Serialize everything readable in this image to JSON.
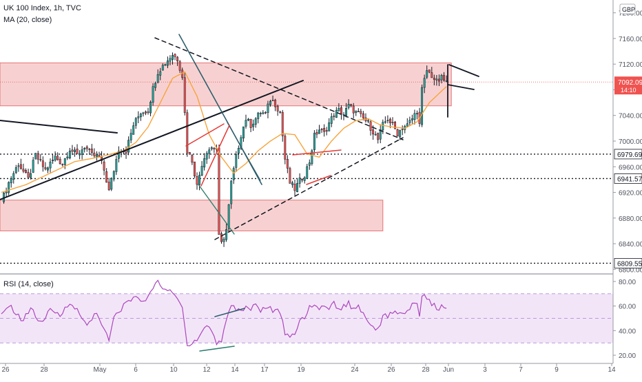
{
  "header": {
    "symbol_title": "UK 100 Index, 1h, TVC",
    "ma_legend": "MA (20, close)",
    "rsi_legend": "RSI (14, close)",
    "currency": "GBP"
  },
  "price_axis": {
    "ticks": [
      "7200.00",
      "7160.00",
      "7120.00",
      "7080.00",
      "7040.00",
      "7000.00",
      "6960.00",
      "6920.00",
      "6880.00",
      "6840.00",
      "6800.00"
    ],
    "price_labels": [
      {
        "value": 7092.09,
        "text": "7092.09",
        "subtext": "14:10",
        "kind": "current"
      },
      {
        "value": 6979.69,
        "text": "6979.69",
        "kind": "level"
      },
      {
        "value": 6941.57,
        "text": "6941.57",
        "kind": "level"
      },
      {
        "value": 6809.55,
        "text": "6809.55",
        "kind": "level"
      }
    ]
  },
  "rsi_axis": {
    "ticks": [
      "80.00",
      "60.00",
      "40.00",
      "20.00"
    ]
  },
  "time_axis": {
    "labels": [
      "26",
      "28",
      "May",
      "6",
      "10",
      "12",
      "14",
      "17",
      "19",
      "24",
      "26",
      "28",
      "Jun",
      "3",
      "7",
      "9",
      "14"
    ]
  },
  "chart_data": {
    "type": "candlestick",
    "symbol": "UK 100 Index",
    "interval": "1h",
    "source": "TVC",
    "price_range": [
      6795,
      7220
    ],
    "rsi_range": [
      15,
      85
    ],
    "rsi_band": [
      30,
      70
    ],
    "time_labels": [
      "26",
      "28",
      "May",
      "6",
      "10",
      "12",
      "14",
      "17",
      "19",
      "24",
      "26",
      "28",
      "Jun",
      "3",
      "7",
      "9",
      "14"
    ],
    "close_anchors": [
      [
        0,
        6905
      ],
      [
        3,
        6935
      ],
      [
        7,
        6965
      ],
      [
        11,
        6940
      ],
      [
        14,
        6978
      ],
      [
        18,
        6955
      ],
      [
        22,
        6975
      ],
      [
        25,
        6965
      ],
      [
        28,
        6988
      ],
      [
        31,
        6978
      ],
      [
        34,
        6992
      ],
      [
        37,
        6978
      ],
      [
        40,
        6975
      ],
      [
        42,
        6955
      ],
      [
        44,
        6922
      ],
      [
        46,
        6955
      ],
      [
        48,
        6988
      ],
      [
        51,
        6985
      ],
      [
        54,
        7025
      ],
      [
        57,
        7045
      ],
      [
        60,
        7048
      ],
      [
        62,
        7082
      ],
      [
        64,
        7108
      ],
      [
        67,
        7122
      ],
      [
        70,
        7135
      ],
      [
        72,
        7128
      ],
      [
        74,
        7102
      ],
      [
        76,
        6985
      ],
      [
        78,
        6970
      ],
      [
        80,
        6930
      ],
      [
        82,
        6965
      ],
      [
        84,
        6985
      ],
      [
        86,
        6990
      ],
      [
        88,
        6988
      ],
      [
        89,
        6850
      ],
      [
        90,
        6840
      ],
      [
        92,
        6862
      ],
      [
        94,
        6935
      ],
      [
        96,
        6975
      ],
      [
        98,
        7010
      ],
      [
        100,
        7035
      ],
      [
        102,
        7025
      ],
      [
        104,
        7035
      ],
      [
        106,
        7045
      ],
      [
        108,
        7042
      ],
      [
        110,
        7065
      ],
      [
        112,
        7058
      ],
      [
        114,
        7045
      ],
      [
        116,
        6972
      ],
      [
        118,
        6935
      ],
      [
        120,
        6925
      ],
      [
        122,
        6938
      ],
      [
        124,
        6948
      ],
      [
        126,
        6968
      ],
      [
        128,
        7008
      ],
      [
        130,
        7018
      ],
      [
        132,
        7012
      ],
      [
        134,
        7028
      ],
      [
        136,
        7042
      ],
      [
        138,
        7048
      ],
      [
        140,
        7042
      ],
      [
        142,
        7055
      ],
      [
        144,
        7048
      ],
      [
        146,
        7042
      ],
      [
        148,
        7035
      ],
      [
        150,
        7028
      ],
      [
        152,
        7015
      ],
      [
        154,
        7002
      ],
      [
        156,
        7025
      ],
      [
        158,
        7035
      ],
      [
        160,
        7025
      ],
      [
        162,
        7012
      ],
      [
        164,
        7022
      ],
      [
        166,
        7025
      ],
      [
        168,
        7035
      ],
      [
        170,
        7048
      ],
      [
        171,
        7025
      ],
      [
        172,
        7080
      ],
      [
        174,
        7110
      ],
      [
        176,
        7102
      ],
      [
        178,
        7092
      ],
      [
        180,
        7098
      ],
      [
        182,
        7092.09
      ]
    ],
    "moving_average": {
      "name": "MA (20, close)",
      "points": [
        [
          0,
          6920
        ],
        [
          10,
          6932
        ],
        [
          20,
          6950
        ],
        [
          30,
          6968
        ],
        [
          40,
          6975
        ],
        [
          50,
          6985
        ],
        [
          55,
          6998
        ],
        [
          60,
          7022
        ],
        [
          65,
          7060
        ],
        [
          70,
          7098
        ],
        [
          75,
          7108
        ],
        [
          80,
          7070
        ],
        [
          85,
          7010
        ],
        [
          90,
          6975
        ],
        [
          95,
          6950
        ],
        [
          100,
          6965
        ],
        [
          105,
          6985
        ],
        [
          110,
          7000
        ],
        [
          115,
          7012
        ],
        [
          120,
          7010
        ],
        [
          125,
          6980
        ],
        [
          130,
          6975
        ],
        [
          135,
          7000
        ],
        [
          140,
          7020
        ],
        [
          145,
          7032
        ],
        [
          150,
          7035
        ],
        [
          155,
          7025
        ],
        [
          160,
          7022
        ],
        [
          165,
          7020
        ],
        [
          170,
          7030
        ],
        [
          175,
          7060
        ],
        [
          182,
          7085
        ]
      ]
    },
    "rsi": {
      "name": "RSI (14, close)",
      "anchors": [
        [
          0,
          52
        ],
        [
          4,
          60
        ],
        [
          8,
          48
        ],
        [
          12,
          58
        ],
        [
          16,
          46
        ],
        [
          20,
          56
        ],
        [
          24,
          52
        ],
        [
          28,
          64
        ],
        [
          31,
          56
        ],
        [
          35,
          44
        ],
        [
          39,
          56
        ],
        [
          42,
          40
        ],
        [
          44,
          32
        ],
        [
          46,
          50
        ],
        [
          49,
          58
        ],
        [
          52,
          64
        ],
        [
          55,
          68
        ],
        [
          58,
          62
        ],
        [
          61,
          72
        ],
        [
          63,
          80
        ],
        [
          66,
          76
        ],
        [
          68,
          72
        ],
        [
          70,
          70
        ],
        [
          72,
          66
        ],
        [
          74,
          58
        ],
        [
          76,
          28
        ],
        [
          78,
          31
        ],
        [
          80,
          33
        ],
        [
          82,
          40
        ],
        [
          84,
          44
        ],
        [
          86,
          40
        ],
        [
          87,
          36
        ],
        [
          88,
          28
        ],
        [
          89,
          32
        ],
        [
          90,
          31
        ],
        [
          92,
          50
        ],
        [
          94,
          60
        ],
        [
          96,
          58
        ],
        [
          98,
          56
        ],
        [
          100,
          60
        ],
        [
          102,
          58
        ],
        [
          104,
          62
        ],
        [
          106,
          56
        ],
        [
          108,
          60
        ],
        [
          110,
          58
        ],
        [
          112,
          55
        ],
        [
          114,
          56
        ],
        [
          116,
          36
        ],
        [
          118,
          34
        ],
        [
          120,
          38
        ],
        [
          122,
          48
        ],
        [
          124,
          52
        ],
        [
          126,
          58
        ],
        [
          128,
          62
        ],
        [
          130,
          56
        ],
        [
          132,
          62
        ],
        [
          134,
          58
        ],
        [
          136,
          62
        ],
        [
          138,
          58
        ],
        [
          140,
          60
        ],
        [
          142,
          62
        ],
        [
          144,
          58
        ],
        [
          146,
          60
        ],
        [
          148,
          54
        ],
        [
          150,
          48
        ],
        [
          152,
          44
        ],
        [
          154,
          40
        ],
        [
          156,
          54
        ],
        [
          158,
          52
        ],
        [
          160,
          56
        ],
        [
          162,
          52
        ],
        [
          164,
          56
        ],
        [
          166,
          54
        ],
        [
          168,
          60
        ],
        [
          170,
          62
        ],
        [
          171,
          52
        ],
        [
          172,
          70
        ],
        [
          174,
          64
        ],
        [
          176,
          62
        ],
        [
          178,
          58
        ],
        [
          180,
          60
        ],
        [
          182,
          56
        ]
      ]
    },
    "horizontal_levels": [
      6979.69,
      6941.57,
      6809.55,
      7092.09
    ],
    "zones": [
      {
        "from_bar": 0,
        "to_bar": 184,
        "low": 7055,
        "high": 7122
      },
      {
        "from_bar": 0,
        "to_bar": 156,
        "low": 6860,
        "high": 6908
      }
    ]
  },
  "colors": {
    "up": "#26a69a",
    "down": "#ef5350",
    "candle_body": "#131722",
    "ma": "#f7a43b",
    "rsi": "#ab47bc",
    "rsi_band": "#f3e5f8",
    "zone": "#f6c9c9",
    "zone_border": "#e57373",
    "current_price": "#ef5350"
  }
}
